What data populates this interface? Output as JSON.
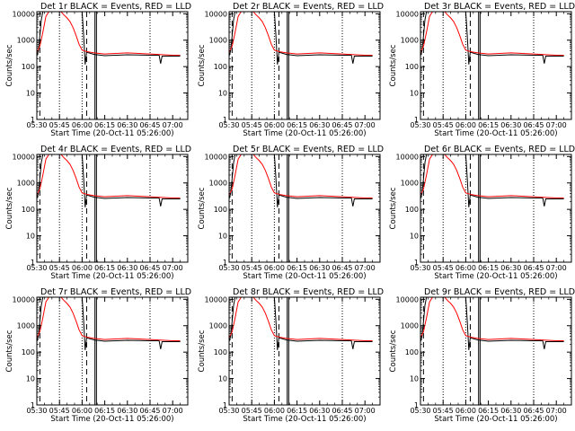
{
  "chart_data": {
    "type": "line",
    "layout": "3x3 grid",
    "yscale": "log",
    "ylim": [
      1,
      12000
    ],
    "xlim": [
      "05:30",
      "07:10"
    ],
    "xticks": [
      "05:30",
      "05:45",
      "06:00",
      "06:15",
      "06:30",
      "06:45",
      "07:00"
    ],
    "yticks": [
      "1",
      "10",
      "100",
      "1000",
      "10000"
    ],
    "ylabel": "Counts/sec",
    "xlabel": "Start Time (20-Oct-11 05:26:00)",
    "series_colors": {
      "events": "#000000",
      "lld": "#ff0000"
    },
    "panels": [
      {
        "title": "Det 1r BLACK = Events, RED = LLD"
      },
      {
        "title": "Det 2r BLACK = Events, RED = LLD"
      },
      {
        "title": "Det 3r BLACK = Events, RED = LLD"
      },
      {
        "title": "Det 4r BLACK = Events, RED = LLD"
      },
      {
        "title": "Det 5r BLACK = Events, RED = LLD"
      },
      {
        "title": "Det 6r BLACK = Events, RED = LLD"
      },
      {
        "title": "Det 7r BLACK = Events, RED = LLD"
      },
      {
        "title": "Det 8r BLACK = Events, RED = LLD"
      },
      {
        "title": "Det 9r BLACK = Events, RED = LLD"
      }
    ],
    "lld_curve": [
      [
        "05:30",
        350
      ],
      [
        "05:32",
        600
      ],
      [
        "05:34",
        2000
      ],
      [
        "05:36",
        8000
      ],
      [
        "05:38",
        12000
      ],
      [
        "05:46",
        12000
      ],
      [
        "05:48",
        9000
      ],
      [
        "05:50",
        7000
      ],
      [
        "05:52",
        5000
      ],
      [
        "05:54",
        3000
      ],
      [
        "05:56",
        1500
      ],
      [
        "05:58",
        700
      ],
      [
        "06:00",
        420
      ],
      [
        "06:04",
        360
      ],
      [
        "06:08",
        330
      ],
      [
        "06:15",
        300
      ],
      [
        "06:30",
        330
      ],
      [
        "06:45",
        300
      ],
      [
        "07:00",
        270
      ],
      [
        "07:05",
        270
      ]
    ],
    "events_curve": [
      [
        "05:30",
        250
      ],
      [
        "05:31",
        400
      ],
      [
        "05:32",
        1500
      ],
      [
        "05:33",
        6000
      ],
      [
        "05:34",
        12000
      ],
      [
        "06:00",
        12000
      ],
      [
        "06:01",
        1500
      ],
      [
        "06:02",
        120
      ],
      [
        "06:03",
        350
      ],
      [
        "06:08",
        290
      ],
      [
        "06:15",
        260
      ],
      [
        "06:30",
        280
      ],
      [
        "06:45",
        270
      ],
      [
        "06:51",
        270
      ],
      [
        "06:52",
        130
      ],
      [
        "06:53",
        250
      ],
      [
        "07:05",
        250
      ]
    ],
    "vertical_markers": {
      "dotted": [
        "05:45",
        "06:00",
        "06:45"
      ],
      "dashed": [
        "05:32",
        "06:03"
      ],
      "solid": [
        "06:08.5",
        "06:09.5"
      ]
    }
  }
}
